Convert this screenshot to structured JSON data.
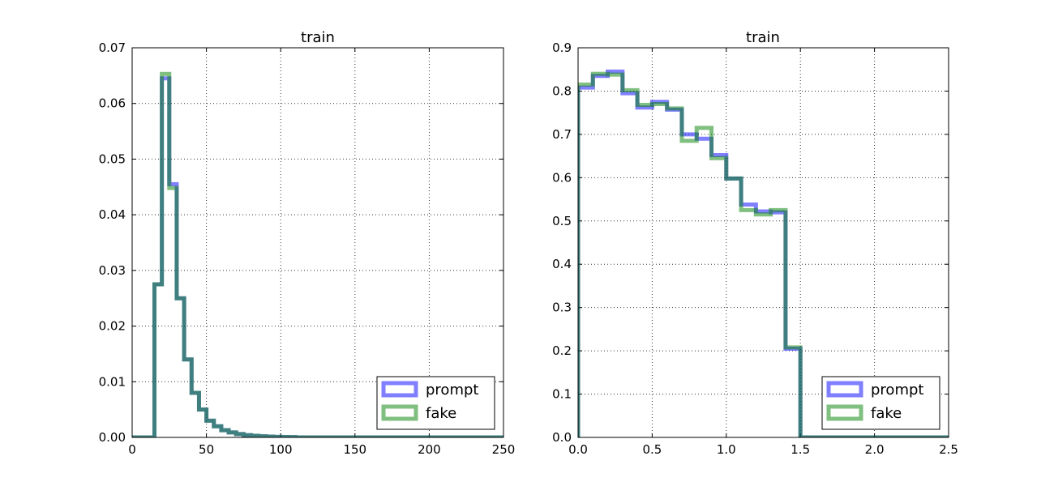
{
  "chart_data": [
    {
      "type": "histogram-step",
      "title": "train",
      "xlim": [
        0,
        250
      ],
      "ylim": [
        0,
        0.07
      ],
      "xticks": [
        "0",
        "50",
        "100",
        "150",
        "200",
        "250"
      ],
      "yticks": [
        "0.00",
        "0.01",
        "0.02",
        "0.03",
        "0.04",
        "0.05",
        "0.06",
        "0.07"
      ],
      "grid": true,
      "legend_placement": "lower-right",
      "bin_edges": [
        0,
        5,
        10,
        15,
        20,
        25,
        30,
        35,
        40,
        45,
        50,
        55,
        60,
        65,
        70,
        75,
        80,
        85,
        90,
        95,
        100,
        105,
        110,
        250
      ],
      "series": [
        {
          "name": "prompt",
          "color": "#0000ff",
          "values": [
            0,
            0,
            0,
            0.0275,
            0.0645,
            0.0455,
            0.025,
            0.014,
            0.008,
            0.005,
            0.003,
            0.002,
            0.0013,
            0.0009,
            0.0006,
            0.0004,
            0.0003,
            0.0002,
            0.00015,
            0.0001,
            7e-05,
            5e-05,
            0
          ]
        },
        {
          "name": "fake",
          "color": "#008000",
          "values": [
            0,
            0,
            0,
            0.0275,
            0.0653,
            0.0448,
            0.025,
            0.014,
            0.008,
            0.005,
            0.003,
            0.002,
            0.0013,
            0.0009,
            0.0006,
            0.0004,
            0.0003,
            0.0002,
            0.00015,
            0.0001,
            7e-05,
            5e-05,
            0
          ]
        }
      ]
    },
    {
      "type": "histogram-step",
      "title": "train",
      "xlim": [
        0,
        2.5
      ],
      "ylim": [
        0,
        0.9
      ],
      "xticks": [
        "0.0",
        "0.5",
        "1.0",
        "1.5",
        "2.0",
        "2.5"
      ],
      "yticks": [
        "0.0",
        "0.1",
        "0.2",
        "0.3",
        "0.4",
        "0.5",
        "0.6",
        "0.7",
        "0.8",
        "0.9"
      ],
      "grid": true,
      "legend_placement": "lower-right",
      "bin_edges": [
        0,
        0.1,
        0.2,
        0.3,
        0.4,
        0.5,
        0.6,
        0.7,
        0.8,
        0.9,
        1.0,
        1.1,
        1.2,
        1.3,
        1.4,
        1.5,
        2.5
      ],
      "series": [
        {
          "name": "prompt",
          "color": "#0000ff",
          "values": [
            0.808,
            0.835,
            0.845,
            0.795,
            0.762,
            0.775,
            0.757,
            0.7,
            0.69,
            0.652,
            0.598,
            0.538,
            0.522,
            0.52,
            0.205,
            0
          ]
        },
        {
          "name": "fake",
          "color": "#008000",
          "values": [
            0.815,
            0.84,
            0.838,
            0.802,
            0.768,
            0.77,
            0.76,
            0.685,
            0.715,
            0.645,
            0.598,
            0.525,
            0.515,
            0.525,
            0.208,
            0
          ]
        }
      ]
    }
  ]
}
